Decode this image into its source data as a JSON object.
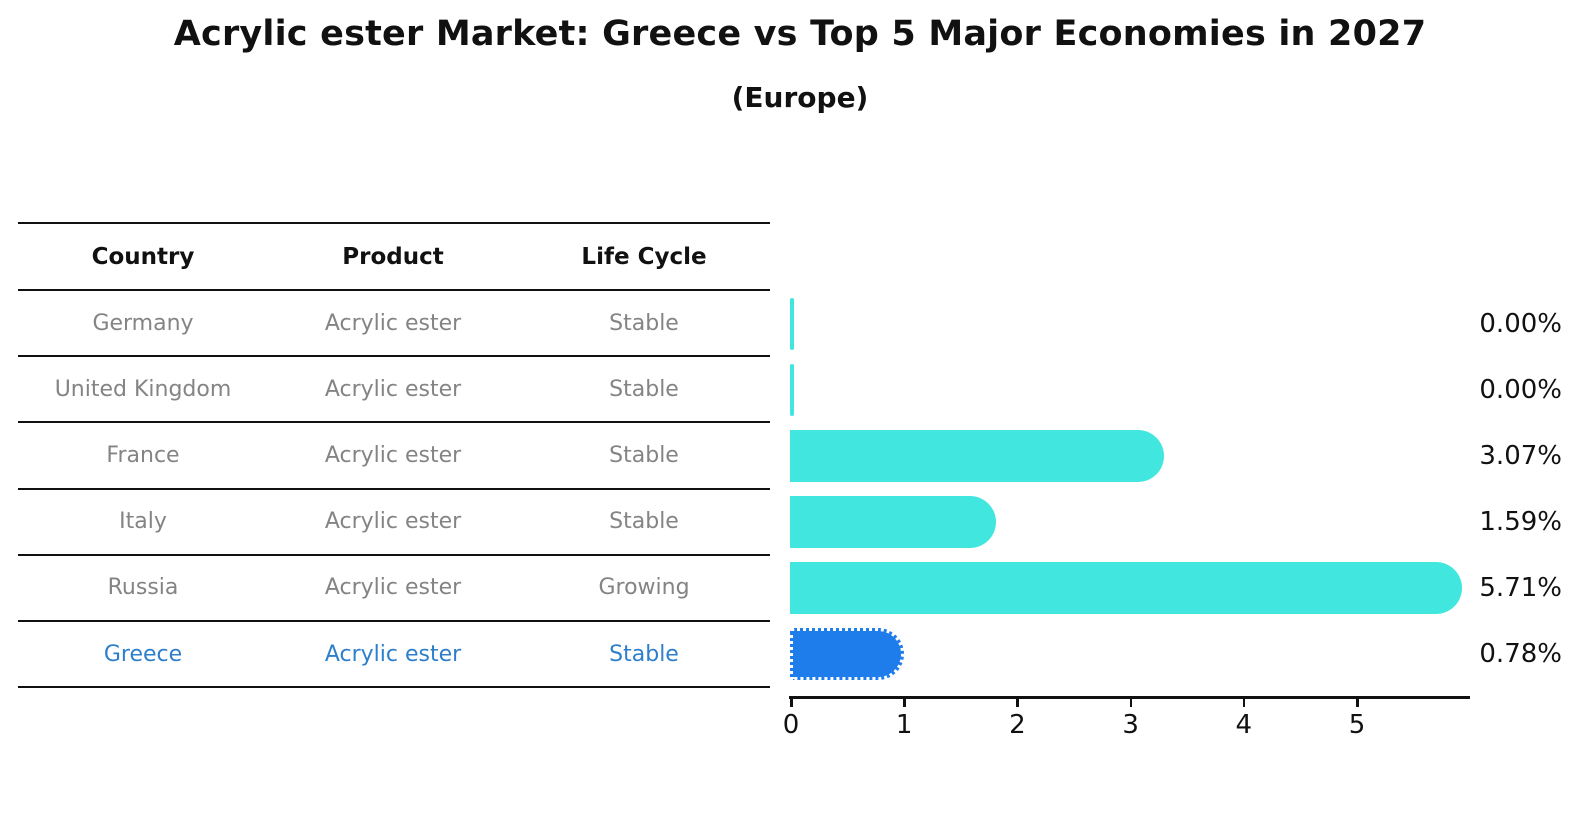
{
  "chart_data": {
    "type": "bar",
    "orientation": "horizontal",
    "title": "Acrylic ester Market: Greece vs Top 5 Major Economies in 2027",
    "subtitle": "(Europe)",
    "categories": [
      "Germany",
      "United Kingdom",
      "France",
      "Italy",
      "Russia",
      "Greece"
    ],
    "values": [
      0.0,
      0.0,
      3.07,
      1.59,
      5.71,
      0.78
    ],
    "value_labels": [
      "0.00%",
      "0.00%",
      "3.07%",
      "1.59%",
      "5.71%",
      "0.78%"
    ],
    "xlabel": "",
    "ylabel": "",
    "xlim": [
      0,
      6
    ],
    "x_ticks": [
      "0",
      "1",
      "2",
      "3",
      "4",
      "5"
    ],
    "grid": false,
    "legend_position": "none",
    "highlight_category": "Greece",
    "colors": {
      "bar": "#41e7df",
      "highlight_bar": "#1f7ceb",
      "highlight_text": "#2e7fcb",
      "table_text": "#848484",
      "axis_and_text": "#111111"
    }
  },
  "table": {
    "headers": [
      "Country",
      "Product",
      "Life Cycle"
    ],
    "rows": [
      {
        "country": "Germany",
        "product": "Acrylic ester",
        "life_cycle": "Stable",
        "highlighted": false
      },
      {
        "country": "United Kingdom",
        "product": "Acrylic ester",
        "life_cycle": "Stable",
        "highlighted": false
      },
      {
        "country": "France",
        "product": "Acrylic ester",
        "life_cycle": "Stable",
        "highlighted": false
      },
      {
        "country": "Italy",
        "product": "Acrylic ester",
        "life_cycle": "Stable",
        "highlighted": false
      },
      {
        "country": "Russia",
        "product": "Acrylic ester",
        "life_cycle": "Growing",
        "highlighted": false
      },
      {
        "country": "Greece",
        "product": "Acrylic ester",
        "life_cycle": "Stable",
        "highlighted": true
      }
    ]
  }
}
